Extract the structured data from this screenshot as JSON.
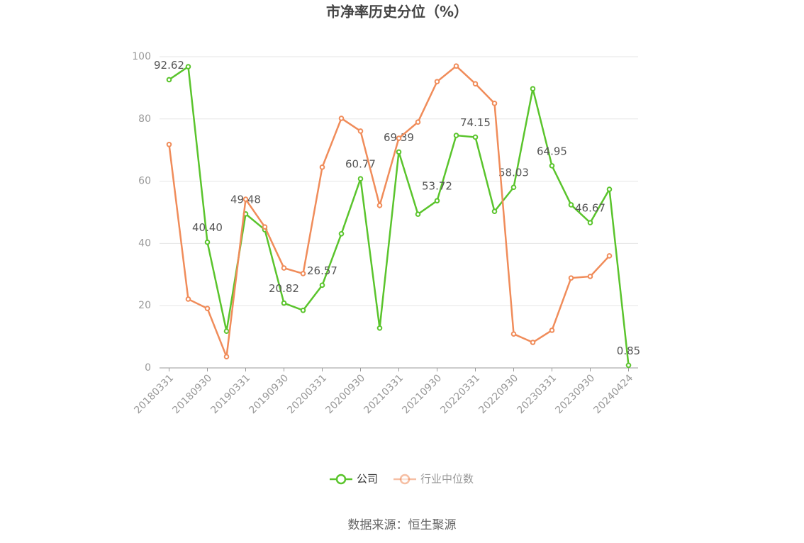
{
  "chart_data": {
    "type": "line",
    "title": "市净率历史分位（%）",
    "source": "数据来源：恒生聚源",
    "categories": [
      "20180331",
      null,
      "20180930",
      null,
      "20190331",
      null,
      "20190930",
      null,
      "20200331",
      null,
      "20200930",
      null,
      "20210331",
      null,
      "20210930",
      null,
      "20220331",
      null,
      "20220930",
      null,
      "20230331",
      null,
      "20230930",
      null,
      "20240424"
    ],
    "series": [
      {
        "name": "公司",
        "color": "#5ac42c",
        "values": [
          92.62,
          96.8,
          40.4,
          11.8,
          49.48,
          44.4,
          20.82,
          18.5,
          26.57,
          43.1,
          60.77,
          12.8,
          69.39,
          49.4,
          53.72,
          74.7,
          74.15,
          50.3,
          58.03,
          89.7,
          64.95,
          52.4,
          46.67,
          57.4,
          0.85
        ],
        "value_labels": [
          "92.62",
          null,
          "40.40",
          null,
          "49.48",
          null,
          "20.82",
          null,
          "26.57",
          null,
          "60.77",
          null,
          "69.39",
          null,
          "53.72",
          null,
          "74.15",
          null,
          "58.03",
          null,
          "64.95",
          null,
          "46.67",
          null,
          "0.85"
        ]
      },
      {
        "name": "行业中位数",
        "color": "#f08c5a",
        "values": [
          71.8,
          22.1,
          19.1,
          3.6,
          54.2,
          45.3,
          32.1,
          30.3,
          64.5,
          80.2,
          76.1,
          52.2,
          73.8,
          79.0,
          92.0,
          97.0,
          91.3,
          85.0,
          10.9,
          8.2,
          12.1,
          28.9,
          29.4,
          36.0,
          null
        ]
      }
    ],
    "ylim": [
      0,
      100
    ],
    "yticks": [
      0,
      20,
      40,
      60,
      80,
      100
    ],
    "grid": true
  }
}
